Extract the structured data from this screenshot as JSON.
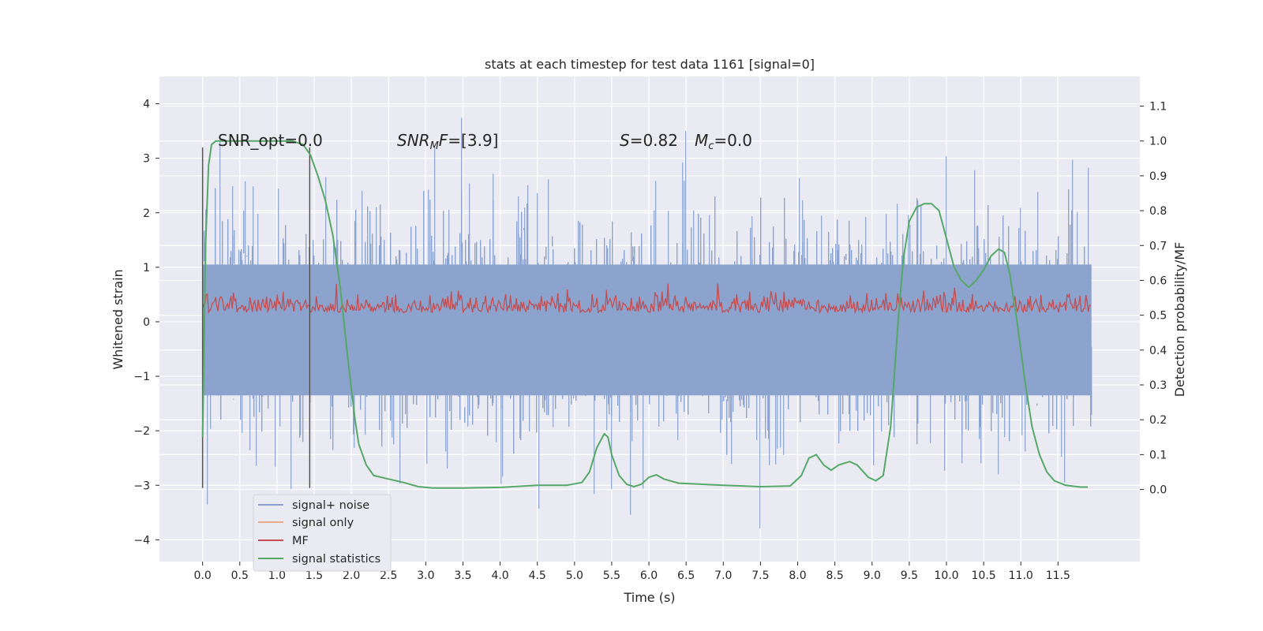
{
  "chart_data": {
    "type": "line",
    "title": "stats at each timestep for test data 1161 [signal=0]",
    "xlabel": "Time (s)",
    "ylabel_left": "Whitened strain",
    "ylabel_right": "Detection probability/MF",
    "xlim": [
      -0.58,
      12.6
    ],
    "ylim_left": [
      -4.4,
      4.5
    ],
    "ylim_right": [
      -0.207,
      1.185
    ],
    "xticks": [
      "0.0",
      "0.5",
      "1.0",
      "1.5",
      "2.0",
      "2.5",
      "3.0",
      "3.5",
      "4.0",
      "4.5",
      "5.0",
      "5.5",
      "6.0",
      "6.5",
      "7.0",
      "7.5",
      "8.0",
      "8.5",
      "9.0",
      "9.5",
      "10.0",
      "10.5",
      "11.0",
      "11.5"
    ],
    "yticks_left": [
      "4",
      "3",
      "2",
      "1",
      "0",
      "−1",
      "−2",
      "−3",
      "−4"
    ],
    "yticks_right": [
      "1.1",
      "1.0",
      "0.9",
      "0.8",
      "0.7",
      "0.6",
      "0.5",
      "0.4",
      "0.3",
      "0.2",
      "0.1",
      "0.0"
    ],
    "grid": true,
    "legend_position": "lower-left",
    "legend": [
      "signal+ noise",
      "signal only",
      "MF",
      "signal statistics"
    ],
    "annotations": {
      "snr_opt": "SNR_opt=0.0",
      "snr_mf": "SNRMF=[3.9]",
      "s_value": "S=0.82",
      "mc_value": "Mc=0.0"
    },
    "vertical_lines": [
      0.0,
      1.44
    ],
    "colors": {
      "signal_noise": "#8ca3cd",
      "signal_only": "#e8a98c",
      "mf": "#c44e52",
      "signal_statistics": "#55a868",
      "background": "#eaeaf2",
      "vline": "#555555"
    },
    "series": [
      {
        "name": "signal+ noise",
        "envelope": "whitened strain, range approx −3.9 to 4.1, t 0.0–11.95 s"
      },
      {
        "name": "signal only",
        "values": []
      },
      {
        "name": "MF",
        "band": [
          0.05,
          0.7
        ]
      },
      {
        "name": "signal statistics",
        "axis": "right",
        "x": [
          0.0,
          0.04,
          0.08,
          0.12,
          0.18,
          0.3,
          0.5,
          0.8,
          1.0,
          1.2,
          1.35,
          1.45,
          1.55,
          1.65,
          1.75,
          1.85,
          1.95,
          2.05,
          2.1,
          2.2,
          2.3,
          2.5,
          2.7,
          2.9,
          3.1,
          3.5,
          4.0,
          4.5,
          4.9,
          5.1,
          5.2,
          5.3,
          5.4,
          5.45,
          5.5,
          5.6,
          5.7,
          5.8,
          5.9,
          6.0,
          6.1,
          6.2,
          6.4,
          7.0,
          7.5,
          7.9,
          8.05,
          8.15,
          8.25,
          8.35,
          8.45,
          8.55,
          8.7,
          8.8,
          8.95,
          9.05,
          9.15,
          9.25,
          9.35,
          9.42,
          9.5,
          9.6,
          9.7,
          9.8,
          9.9,
          10.0,
          10.1,
          10.2,
          10.3,
          10.4,
          10.5,
          10.6,
          10.7,
          10.78,
          10.85,
          10.95,
          11.05,
          11.15,
          11.25,
          11.35,
          11.45,
          11.6,
          11.8,
          11.9
        ],
        "y": [
          0.15,
          0.7,
          0.93,
          0.99,
          1.0,
          1.0,
          1.0,
          1.0,
          1.0,
          1.0,
          0.99,
          0.96,
          0.9,
          0.83,
          0.73,
          0.58,
          0.38,
          0.2,
          0.13,
          0.07,
          0.04,
          0.03,
          0.02,
          0.008,
          0.004,
          0.004,
          0.006,
          0.012,
          0.012,
          0.02,
          0.05,
          0.12,
          0.16,
          0.15,
          0.1,
          0.04,
          0.015,
          0.008,
          0.015,
          0.035,
          0.042,
          0.03,
          0.018,
          0.012,
          0.008,
          0.01,
          0.04,
          0.09,
          0.1,
          0.07,
          0.055,
          0.07,
          0.08,
          0.07,
          0.035,
          0.025,
          0.04,
          0.18,
          0.48,
          0.66,
          0.77,
          0.81,
          0.82,
          0.82,
          0.8,
          0.72,
          0.64,
          0.6,
          0.58,
          0.6,
          0.63,
          0.67,
          0.69,
          0.68,
          0.62,
          0.48,
          0.32,
          0.18,
          0.1,
          0.05,
          0.025,
          0.012,
          0.007,
          0.007
        ]
      }
    ]
  }
}
